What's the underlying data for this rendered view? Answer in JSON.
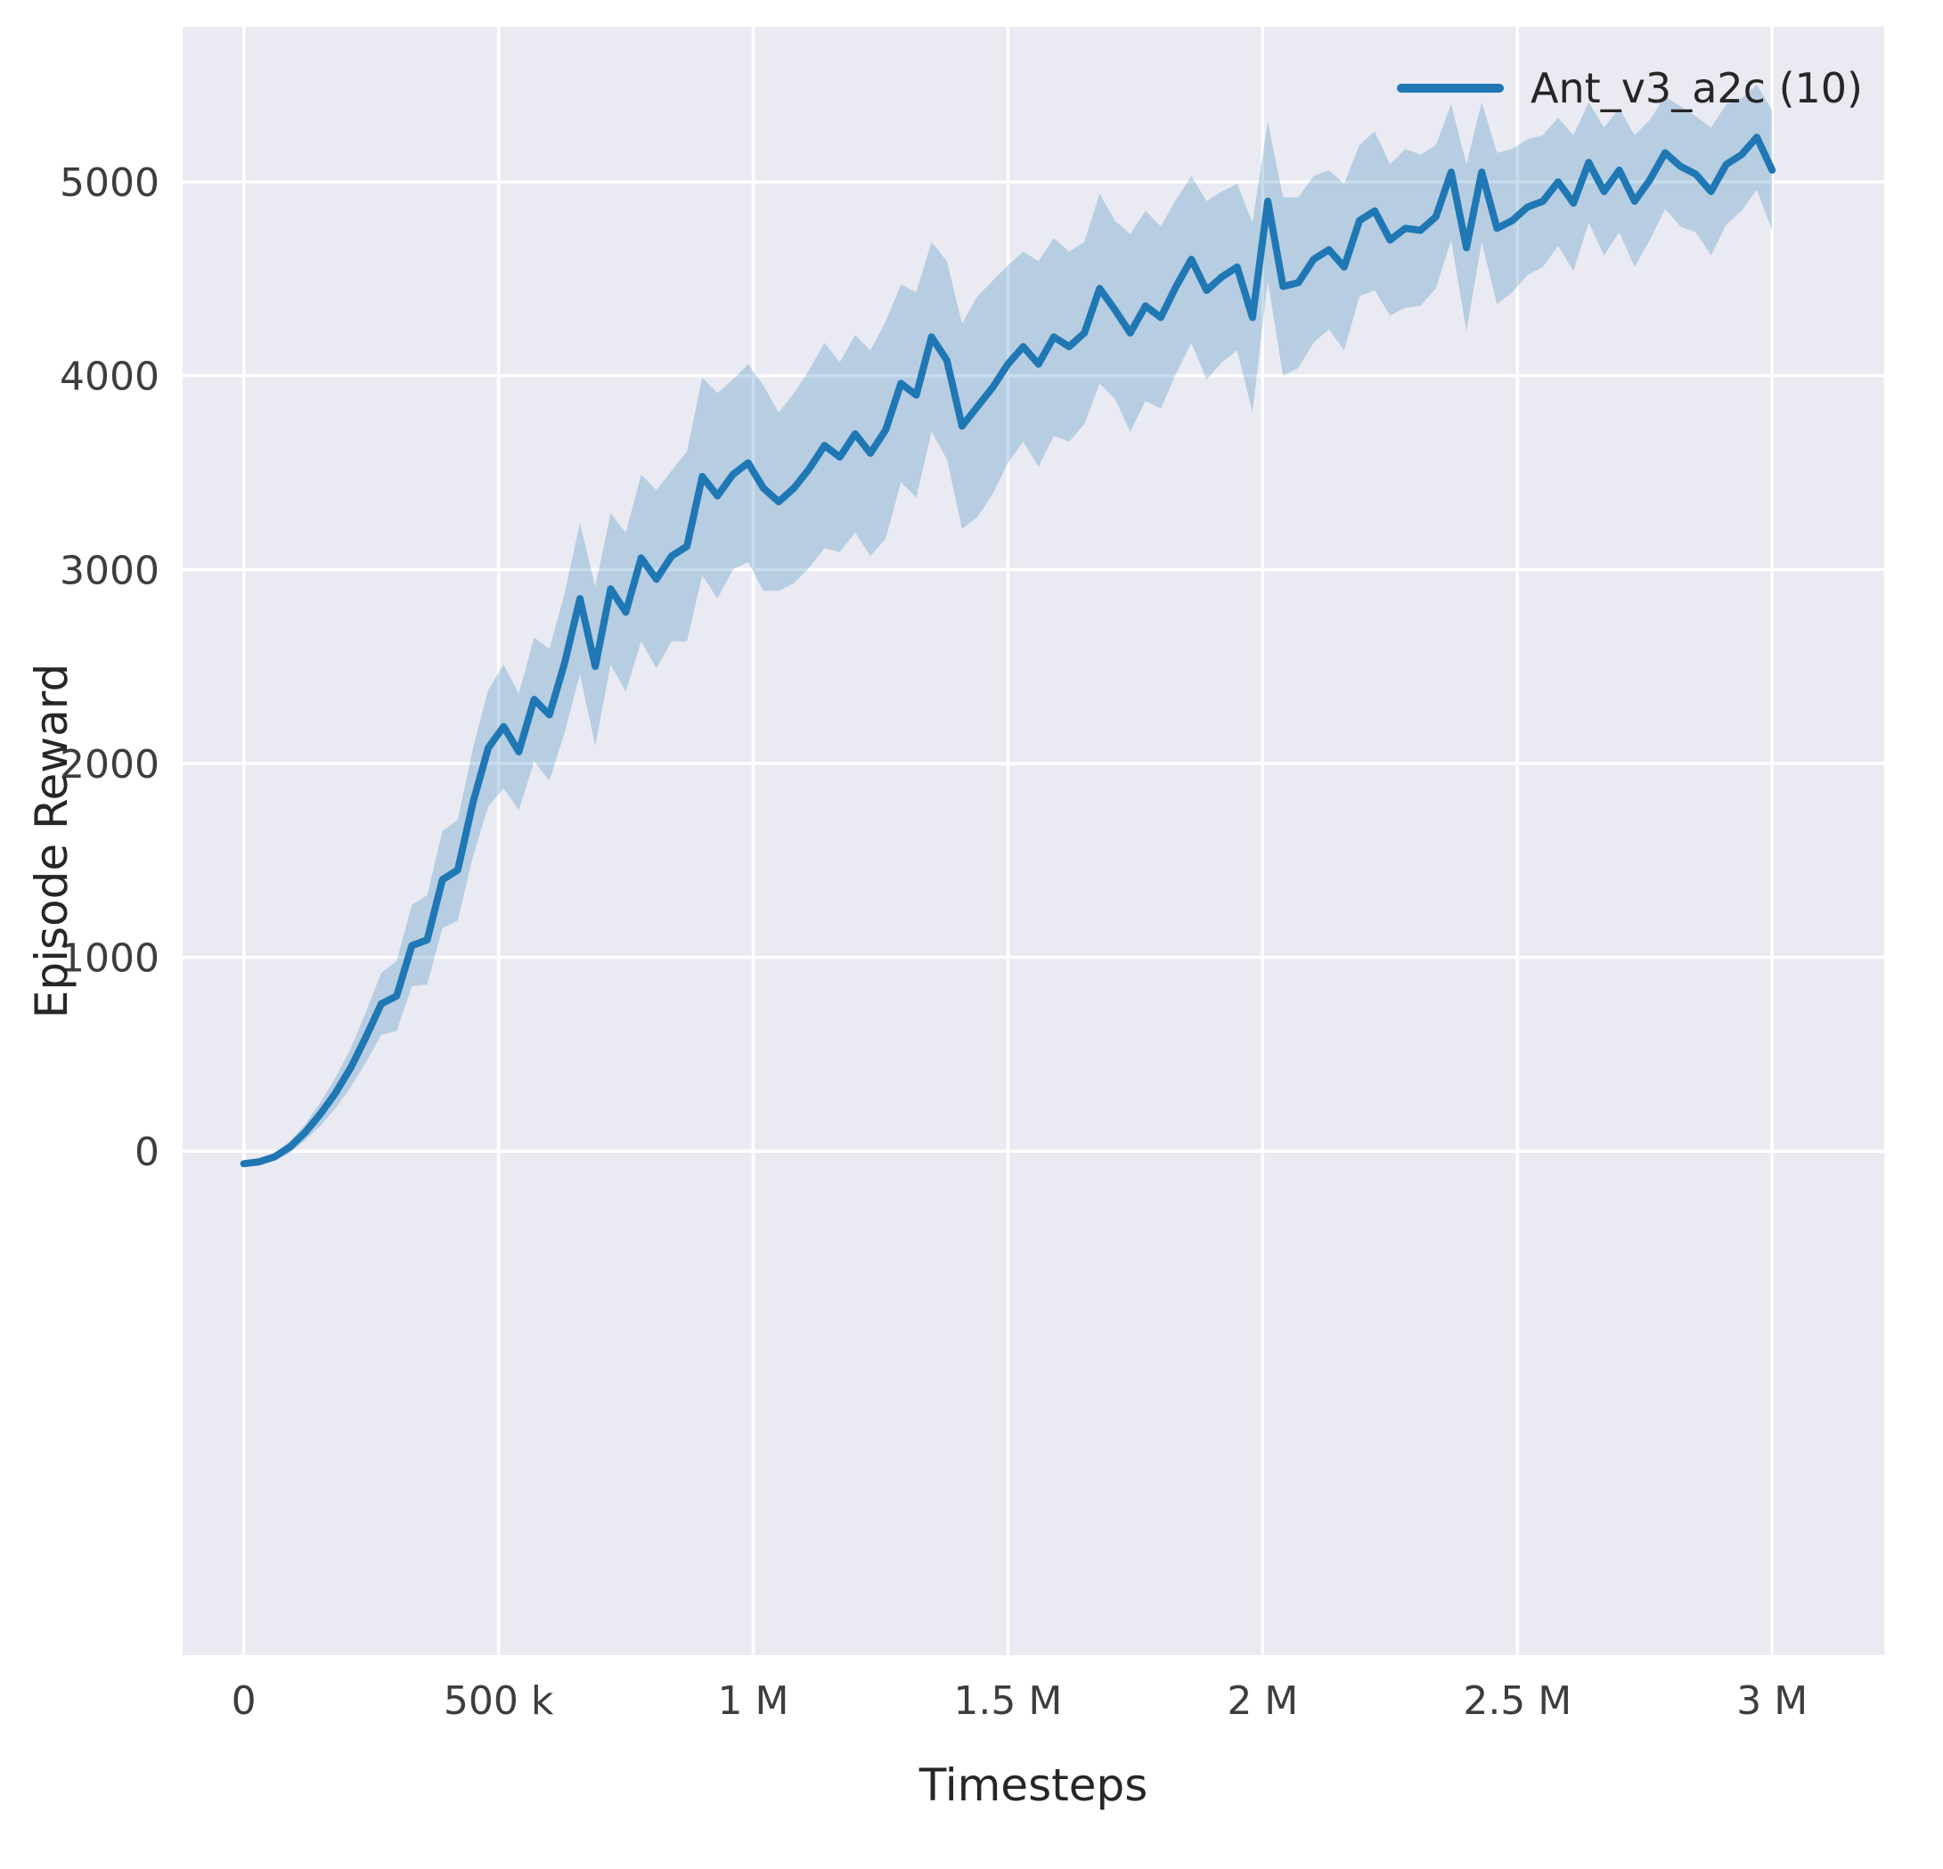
{
  "styles": {
    "figure_bg": "#ffffff",
    "plot_bg": "#eaeaf2",
    "grid_color": "#ffffff",
    "text_color": "#262626",
    "accent": "#1f77b4"
  },
  "chart_data": {
    "type": "line",
    "title": "",
    "xlabel": "Timesteps",
    "ylabel": "Episode Reward",
    "grid": true,
    "legend_position": "upper right",
    "legend": [
      {
        "label": "Ant_v3_a2c (10)",
        "color": "#1f77b4"
      }
    ],
    "xlim": [
      -120000,
      3220000
    ],
    "ylim": [
      -2600,
      5800
    ],
    "x_ticks": [
      {
        "value": 0,
        "label": "0"
      },
      {
        "value": 500000,
        "label": "500 k"
      },
      {
        "value": 1000000,
        "label": "1 M"
      },
      {
        "value": 1500000,
        "label": "1.5 M"
      },
      {
        "value": 2000000,
        "label": "2 M"
      },
      {
        "value": 2500000,
        "label": "2.5 M"
      },
      {
        "value": 3000000,
        "label": "3 M"
      }
    ],
    "y_ticks": [
      {
        "value": 0,
        "label": "0"
      },
      {
        "value": 1000,
        "label": "1000"
      },
      {
        "value": 2000,
        "label": "2000"
      },
      {
        "value": 3000,
        "label": "3000"
      },
      {
        "value": 4000,
        "label": "4000"
      },
      {
        "value": 5000,
        "label": "5000"
      }
    ],
    "series": [
      {
        "name": "Ant_v3_a2c (10)",
        "color": "#1f77b4",
        "band_opacity": 0.25,
        "x": [
          0,
          30000,
          60000,
          90000,
          120000,
          150000,
          180000,
          210000,
          240000,
          270000,
          300000,
          330000,
          360000,
          390000,
          420000,
          450000,
          480000,
          510000,
          540000,
          570000,
          600000,
          630000,
          660000,
          690000,
          720000,
          750000,
          780000,
          810000,
          840000,
          870000,
          900000,
          930000,
          960000,
          990000,
          1020000,
          1050000,
          1080000,
          1110000,
          1140000,
          1170000,
          1200000,
          1230000,
          1260000,
          1290000,
          1320000,
          1350000,
          1380000,
          1410000,
          1440000,
          1470000,
          1500000,
          1530000,
          1560000,
          1590000,
          1620000,
          1650000,
          1680000,
          1710000,
          1740000,
          1770000,
          1800000,
          1830000,
          1860000,
          1890000,
          1920000,
          1950000,
          1980000,
          2010000,
          2040000,
          2070000,
          2100000,
          2130000,
          2160000,
          2190000,
          2220000,
          2250000,
          2280000,
          2310000,
          2340000,
          2370000,
          2400000,
          2430000,
          2460000,
          2490000,
          2520000,
          2550000,
          2580000,
          2610000,
          2640000,
          2670000,
          2700000,
          2730000,
          2760000,
          2790000,
          2820000,
          2850000,
          2880000,
          2910000,
          2940000,
          2970000,
          3000000
        ],
        "mean": [
          -65,
          -55,
          -30,
          20,
          95,
          190,
          300,
          430,
          590,
          760,
          800,
          1060,
          1090,
          1400,
          1450,
          1800,
          2080,
          2190,
          2060,
          2330,
          2250,
          2520,
          2850,
          2500,
          2900,
          2780,
          3060,
          2950,
          3070,
          3120,
          3480,
          3380,
          3490,
          3550,
          3420,
          3350,
          3420,
          3520,
          3640,
          3580,
          3700,
          3600,
          3720,
          3960,
          3900,
          4200,
          4080,
          3740,
          3840,
          3940,
          4060,
          4150,
          4060,
          4200,
          4150,
          4220,
          4450,
          4340,
          4220,
          4360,
          4300,
          4460,
          4600,
          4440,
          4510,
          4560,
          4300,
          4900,
          4460,
          4480,
          4600,
          4650,
          4560,
          4800,
          4850,
          4700,
          4760,
          4750,
          4820,
          5050,
          4660,
          5050,
          4760,
          4800,
          4870,
          4900,
          5000,
          4890,
          5100,
          4950,
          5060,
          4900,
          5010,
          5150,
          5080,
          5040,
          4950,
          5090,
          5140,
          5230,
          5060
        ],
        "band_halfwidth": [
          15,
          15,
          20,
          30,
          40,
          60,
          80,
          100,
          130,
          160,
          180,
          210,
          230,
          250,
          260,
          280,
          300,
          320,
          300,
          320,
          340,
          360,
          390,
          410,
          390,
          410,
          430,
          460,
          440,
          490,
          510,
          530,
          490,
          510,
          530,
          460,
          490,
          510,
          530,
          490,
          510,
          530,
          560,
          510,
          530,
          490,
          510,
          530,
          570,
          550,
          510,
          490,
          530,
          510,
          490,
          470,
          490,
          460,
          510,
          490,
          470,
          450,
          430,
          460,
          440,
          430,
          490,
          410,
          460,
          440,
          430,
          410,
          430,
          390,
          410,
          390,
          410,
          390,
          370,
          350,
          430,
          360,
          390,
          370,
          350,
          340,
          330,
          350,
          310,
          330,
          320,
          340,
          310,
          290,
          310,
          300,
          330,
          310,
          290,
          270,
          310
        ]
      }
    ]
  }
}
